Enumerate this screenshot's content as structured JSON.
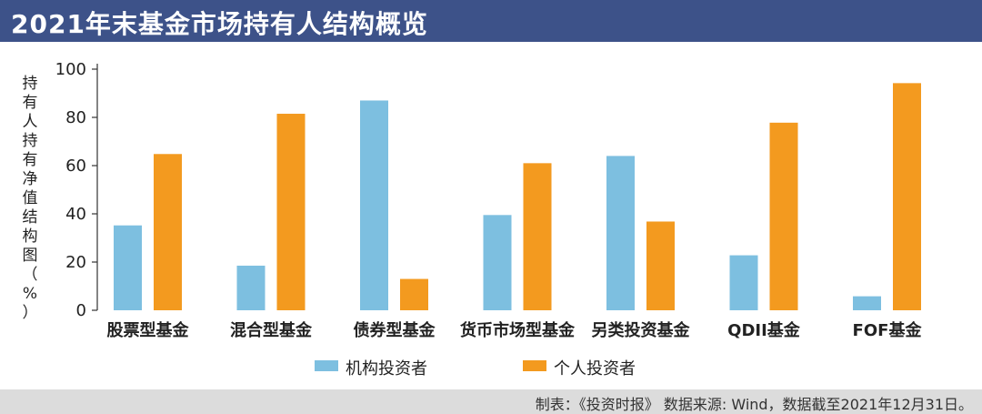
{
  "header": {
    "title": "2021年末基金市场持有人结构概览"
  },
  "colors": {
    "header_bg": "#3d5289",
    "institutional": "#7dbfe0",
    "individual": "#f39a1f",
    "footer_bg": "#dcdcdc"
  },
  "chart_data": {
    "type": "bar",
    "title": "",
    "ylabel": "持有人持有净值结构图（%）",
    "xlabel": "",
    "ylim": [
      0,
      100
    ],
    "yticks": [
      0,
      20,
      40,
      60,
      80,
      100
    ],
    "grid": false,
    "legend_position": "bottom",
    "categories": [
      "股票型基金",
      "混合型基金",
      "债券型基金",
      "货币市场型基金",
      "另类投资基金",
      "QDII基金",
      "FOF基金"
    ],
    "series": [
      {
        "name": "机构投资者",
        "color": "#7dbfe0",
        "values": [
          35.2,
          18.5,
          87.0,
          39.5,
          64.0,
          22.8,
          5.8
        ]
      },
      {
        "name": "个人投资者",
        "color": "#f39a1f",
        "values": [
          64.8,
          81.5,
          13.0,
          61.0,
          36.8,
          77.8,
          94.2
        ]
      }
    ]
  },
  "footer": {
    "source": "制表：《投资时报》 数据来源: Wind，数据截至2021年12月31日。"
  }
}
